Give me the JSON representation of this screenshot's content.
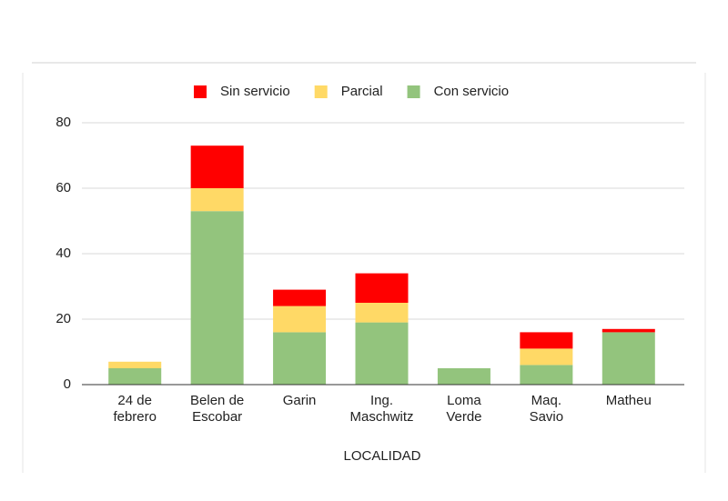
{
  "chart_data": {
    "type": "stacked_bar",
    "x_label": "LOCALIDAD",
    "categories": [
      "24 de\nfebrero",
      "Belen de\nEscobar",
      "Garin",
      "Ing.\nMaschwitz",
      "Loma\nVerde",
      "Maq.\nSavio",
      "Matheu"
    ],
    "series": [
      {
        "name": "Con servicio",
        "color": "#93c47d",
        "values": [
          5,
          53,
          16,
          19,
          5,
          6,
          16
        ]
      },
      {
        "name": "Parcial",
        "color": "#ffd966",
        "values": [
          2,
          7,
          8,
          6,
          0,
          5,
          0
        ]
      },
      {
        "name": "Sin servicio",
        "color": "#ff0000",
        "values": [
          0,
          13,
          5,
          9,
          0,
          5,
          1
        ]
      }
    ],
    "legend_order": [
      2,
      1,
      0
    ],
    "ylim": [
      0,
      80
    ],
    "yticks": [
      0,
      20,
      40,
      60,
      80
    ],
    "grid": true
  }
}
